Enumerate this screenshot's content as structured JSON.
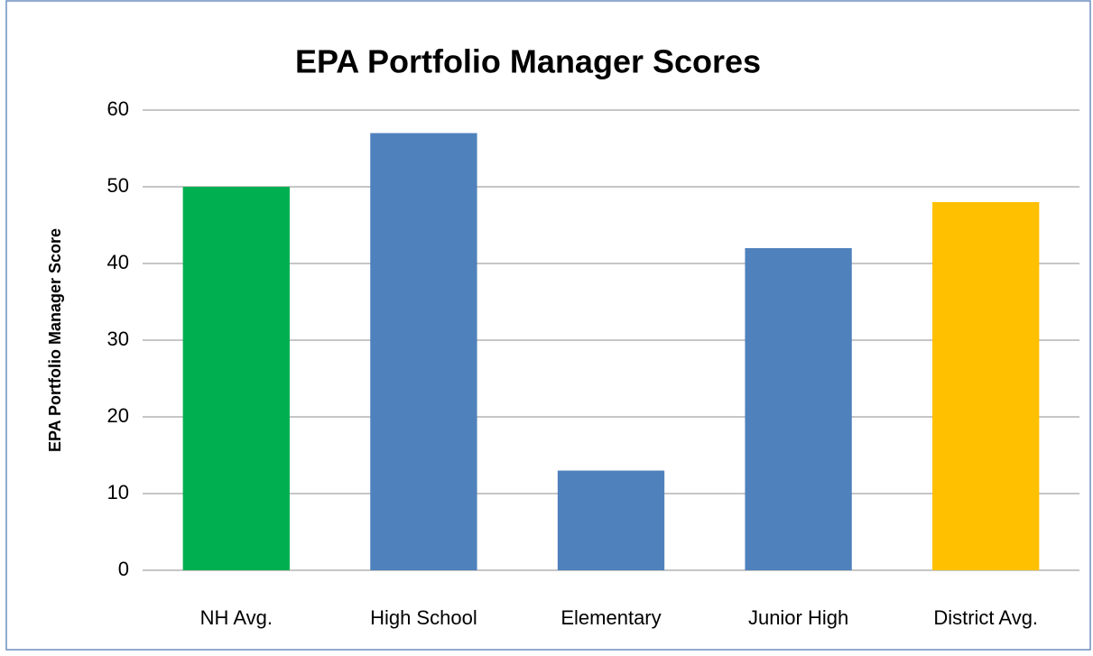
{
  "chart_data": {
    "type": "bar",
    "title": "EPA Portfolio Manager Scores",
    "y_label": "EPA Portfolio Manager Score",
    "categories": [
      "NH Avg.",
      "High School",
      "Elementary",
      "Junior High",
      "District Avg."
    ],
    "values": [
      50,
      57,
      13,
      42,
      48
    ],
    "colors": [
      "#00b050",
      "#4f81bd",
      "#4f81bd",
      "#4f81bd",
      "#ffc000"
    ],
    "ylim": [
      0,
      60
    ],
    "yticks": [
      0,
      10,
      20,
      30,
      40,
      50,
      60
    ],
    "grid": true
  }
}
